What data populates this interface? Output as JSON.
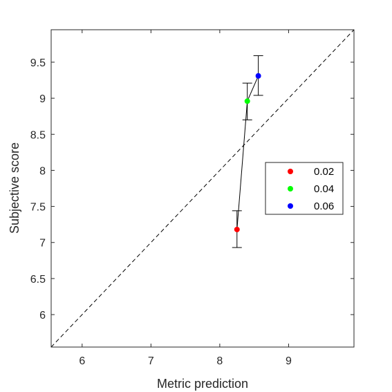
{
  "chart_data": {
    "type": "scatter",
    "title": "",
    "xlabel": "Metric prediction",
    "ylabel": "Subjective score",
    "xlim": [
      5.55,
      9.95
    ],
    "ylim": [
      5.55,
      9.95
    ],
    "xticks": [
      6,
      7,
      8,
      9
    ],
    "yticks": [
      6,
      6.5,
      7,
      7.5,
      8,
      8.5,
      9,
      9.5
    ],
    "xtick_labels": [
      "6",
      "7",
      "8",
      "9"
    ],
    "ytick_labels": [
      "6",
      "6.5",
      "7",
      "7.5",
      "8",
      "8.5",
      "9",
      "9.5"
    ],
    "grid": false,
    "legend_position": "right",
    "reference_line": "y = x (dashed)",
    "connect_points": true,
    "series": [
      {
        "name": "0.02",
        "color": "#ff0000",
        "x": 8.25,
        "y": 7.18,
        "error_low": 6.93,
        "error_high": 7.44
      },
      {
        "name": "0.04",
        "color": "#00ff00",
        "x": 8.4,
        "y": 8.96,
        "error_low": 8.7,
        "error_high": 9.21
      },
      {
        "name": "0.06",
        "color": "#0000ff",
        "x": 8.56,
        "y": 9.31,
        "error_low": 9.04,
        "error_high": 9.59
      }
    ]
  }
}
